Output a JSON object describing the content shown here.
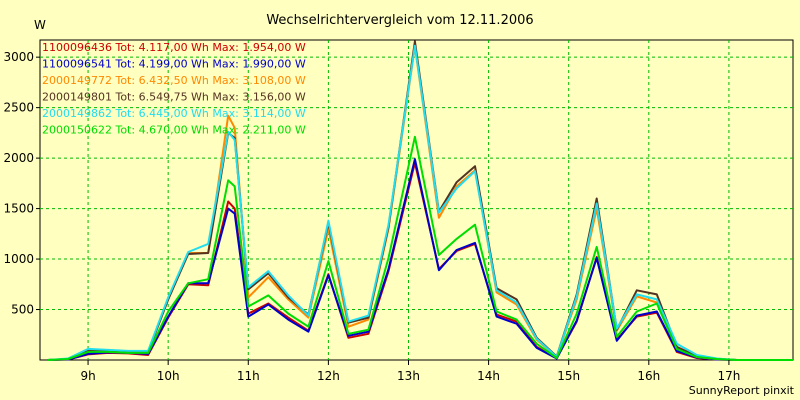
{
  "chart_data": {
    "type": "line",
    "title": "Wechselrichtervergleich vom 12.11.2006",
    "ylabel": "W",
    "xlabel": "",
    "footer": "SunnyReport pinxit",
    "xlim": [
      8.4,
      17.8
    ],
    "ylim": [
      0,
      3170
    ],
    "x_ticks": [
      {
        "value": 9,
        "label": "9h"
      },
      {
        "value": 10,
        "label": "10h"
      },
      {
        "value": 11,
        "label": "11h"
      },
      {
        "value": 12,
        "label": "12h"
      },
      {
        "value": 13,
        "label": "13h"
      },
      {
        "value": 14,
        "label": "14h"
      },
      {
        "value": 15,
        "label": "15h"
      },
      {
        "value": 16,
        "label": "16h"
      },
      {
        "value": 17,
        "label": "17h"
      }
    ],
    "y_ticks": [
      {
        "value": 500,
        "label": "500"
      },
      {
        "value": 1000,
        "label": "1000"
      },
      {
        "value": 1500,
        "label": "1500"
      },
      {
        "value": 2000,
        "label": "2000"
      },
      {
        "value": 2500,
        "label": "2500"
      },
      {
        "value": 3000,
        "label": "3000"
      }
    ],
    "grid": true,
    "legend_position": "top-left",
    "x": [
      8.5,
      8.75,
      9.0,
      9.25,
      9.5,
      9.75,
      10.0,
      10.25,
      10.5,
      10.75,
      10.83,
      11.0,
      11.25,
      11.5,
      11.75,
      12.0,
      12.25,
      12.5,
      12.75,
      13.08,
      13.38,
      13.6,
      13.83,
      14.1,
      14.35,
      14.6,
      14.85,
      15.1,
      15.35,
      15.6,
      15.85,
      16.1,
      16.35,
      16.6,
      16.85,
      17.1,
      17.5,
      17.8
    ],
    "series": [
      {
        "name": "1100096436 Tot: 4.117,00 Wh Max: 1.954,00 W",
        "color": "#CC0000",
        "values": [
          0,
          5,
          55,
          70,
          65,
          50,
          420,
          750,
          740,
          1570,
          1500,
          460,
          560,
          420,
          290,
          850,
          220,
          260,
          880,
          1954,
          900,
          1080,
          1150,
          450,
          380,
          130,
          20,
          380,
          1020,
          200,
          430,
          470,
          80,
          20,
          5,
          0,
          0,
          0
        ]
      },
      {
        "name": "1100096541 Tot: 4.199,00 Wh Max: 1.990,00 W",
        "color": "#0000CC",
        "values": [
          0,
          5,
          60,
          75,
          70,
          60,
          430,
          760,
          760,
          1500,
          1450,
          430,
          550,
          400,
          280,
          840,
          240,
          280,
          900,
          1990,
          890,
          1090,
          1160,
          430,
          360,
          120,
          15,
          390,
          1010,
          190,
          440,
          480,
          90,
          25,
          5,
          0,
          0,
          0
        ]
      },
      {
        "name": "2000149772 Tot: 6.432,50 Wh Max: 3.108,00 W",
        "color": "#FF8800",
        "values": [
          0,
          10,
          100,
          90,
          80,
          80,
          600,
          1060,
          1060,
          2420,
          2300,
          620,
          820,
          600,
          420,
          1300,
          330,
          400,
          1300,
          3108,
          1410,
          1720,
          1880,
          670,
          550,
          200,
          30,
          600,
          1500,
          290,
          630,
          570,
          120,
          30,
          10,
          0,
          0,
          0
        ]
      },
      {
        "name": "2000149801 Tot: 6.549,75 Wh Max: 3.156,00 W",
        "color": "#553322",
        "values": [
          0,
          10,
          90,
          90,
          80,
          80,
          600,
          1050,
          1060,
          2250,
          2200,
          700,
          860,
          620,
          450,
          1360,
          370,
          420,
          1320,
          3156,
          1470,
          1760,
          1920,
          710,
          600,
          220,
          35,
          650,
          1600,
          300,
          690,
          650,
          130,
          40,
          10,
          0,
          0,
          0
        ]
      },
      {
        "name": "2000149862 Tot: 6.445,00 Wh Max: 3.114,00 W",
        "color": "#22DDEE",
        "values": [
          0,
          15,
          110,
          100,
          90,
          90,
          620,
          1070,
          1150,
          2260,
          2180,
          720,
          880,
          640,
          440,
          1380,
          380,
          440,
          1340,
          3114,
          1460,
          1700,
          1870,
          690,
          570,
          210,
          30,
          630,
          1550,
          310,
          650,
          600,
          160,
          50,
          15,
          0,
          0,
          0
        ]
      },
      {
        "name": "2000150622 Tot: 4.670,00 Wh Max: 2.211,00 W",
        "color": "#00DD00",
        "values": [
          0,
          10,
          80,
          80,
          70,
          70,
          480,
          760,
          800,
          1780,
          1720,
          530,
          640,
          460,
          330,
          980,
          260,
          300,
          1010,
          2211,
          1040,
          1200,
          1340,
          480,
          400,
          160,
          20,
          460,
          1120,
          230,
          480,
          560,
          110,
          30,
          10,
          0,
          0,
          0
        ]
      }
    ]
  }
}
